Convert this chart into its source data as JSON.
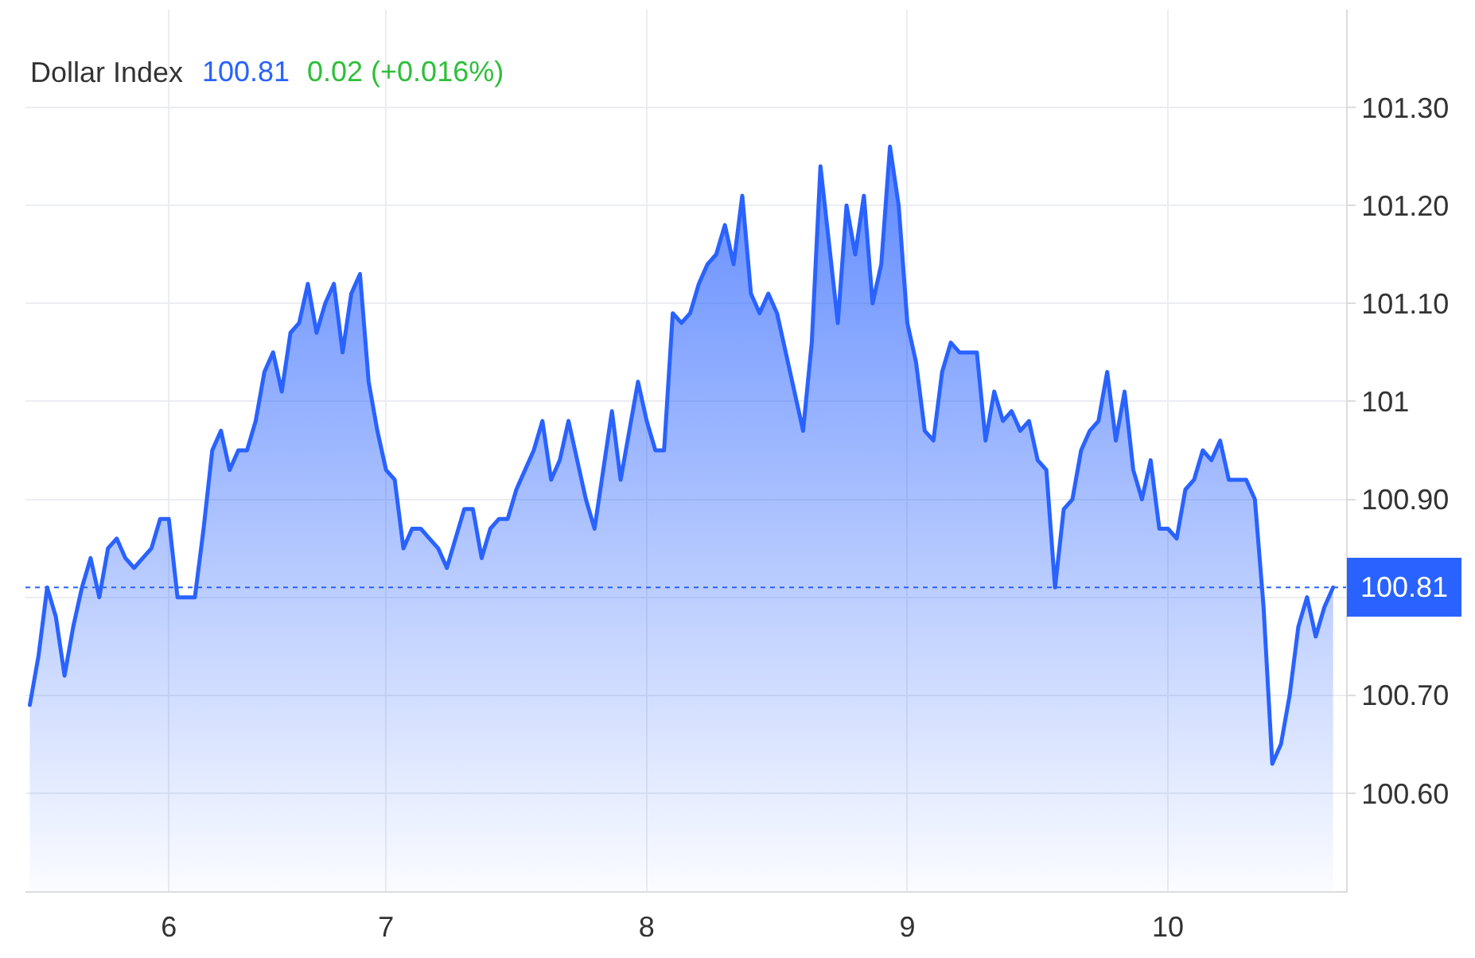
{
  "chart_data": {
    "type": "area",
    "title": "Dollar Index",
    "annotations": [
      "100.81",
      "0.02 (+0.016%)"
    ],
    "categories": [
      null,
      null,
      null,
      null,
      null,
      null,
      null,
      null,
      null,
      null,
      null,
      null,
      null,
      null,
      null,
      null,
      "6",
      null,
      null,
      null,
      null,
      null,
      null,
      null,
      null,
      null,
      null,
      null,
      null,
      null,
      null,
      null,
      null,
      null,
      null,
      null,
      null,
      null,
      null,
      null,
      null,
      "7",
      null,
      null,
      null,
      null,
      null,
      null,
      null,
      null,
      null,
      null,
      null,
      null,
      null,
      null,
      null,
      null,
      null,
      null,
      null,
      null,
      null,
      null,
      null,
      null,
      null,
      null,
      null,
      null,
      null,
      "8",
      null,
      null,
      null,
      null,
      null,
      null,
      null,
      null,
      null,
      null,
      null,
      null,
      null,
      null,
      null,
      null,
      null,
      null,
      null,
      null,
      null,
      null,
      null,
      null,
      null,
      null,
      null,
      null,
      null,
      "9",
      null,
      null,
      null,
      null,
      null,
      null,
      null,
      null,
      null,
      null,
      null,
      null,
      null,
      null,
      null,
      null,
      null,
      null,
      null,
      null,
      null,
      null,
      null,
      null,
      null,
      null,
      null,
      null,
      null,
      "10",
      null,
      null,
      null,
      null,
      null,
      null,
      null,
      null,
      null,
      null,
      null,
      null,
      null,
      null,
      null,
      null,
      null,
      null,
      null
    ],
    "color": "#2962ff",
    "values": [
      100.69,
      100.74,
      100.81,
      100.78,
      100.72,
      100.77,
      100.81,
      100.84,
      100.8,
      100.85,
      100.86,
      100.84,
      100.83,
      100.84,
      100.85,
      100.88,
      100.88,
      100.8,
      100.8,
      100.8,
      100.87,
      100.95,
      100.97,
      100.93,
      100.95,
      100.95,
      100.98,
      101.03,
      101.05,
      101.01,
      101.07,
      101.08,
      101.12,
      101.07,
      101.1,
      101.12,
      101.05,
      101.11,
      101.13,
      101.02,
      100.97,
      100.93,
      100.92,
      100.85,
      100.87,
      100.87,
      100.86,
      100.85,
      100.83,
      100.86,
      100.89,
      100.89,
      100.84,
      100.87,
      100.88,
      100.88,
      100.91,
      100.93,
      100.95,
      100.98,
      100.92,
      100.94,
      100.98,
      100.94,
      100.9,
      100.87,
      100.93,
      100.99,
      100.92,
      100.97,
      101.02,
      100.98,
      100.95,
      100.95,
      101.09,
      101.08,
      101.09,
      101.12,
      101.14,
      101.15,
      101.18,
      101.14,
      101.21,
      101.11,
      101.09,
      101.11,
      101.09,
      101.05,
      101.01,
      100.97,
      101.06,
      101.24,
      101.16,
      101.08,
      101.2,
      101.15,
      101.21,
      101.1,
      101.14,
      101.26,
      101.2,
      101.08,
      101.04,
      100.97,
      100.96,
      101.03,
      101.06,
      101.05,
      101.05,
      101.05,
      100.96,
      101.01,
      100.98,
      100.99,
      100.97,
      100.98,
      100.94,
      100.93,
      100.81,
      100.89,
      100.9,
      100.95,
      100.97,
      100.98,
      101.03,
      100.96,
      101.01,
      100.93,
      100.9,
      100.94,
      100.87,
      100.87,
      100.86,
      100.91,
      100.92,
      100.95,
      100.94,
      100.96,
      100.92,
      100.92,
      100.92,
      100.9,
      100.79,
      100.63,
      100.65,
      100.7,
      100.77,
      100.8,
      100.76,
      100.79,
      100.81
    ],
    "ylim": [
      100.5,
      101.4
    ],
    "yticks": [
      {
        "value": 100.6,
        "label": "100.60"
      },
      {
        "value": 100.7,
        "label": "100.70"
      },
      {
        "value": 100.8,
        "label": null
      },
      {
        "value": 100.9,
        "label": "100.90"
      },
      101,
      {
        "value": 101.1,
        "label": "101.10"
      },
      {
        "value": 101.2,
        "label": "101.20"
      },
      {
        "value": 101.3,
        "label": "101.30"
      }
    ],
    "ref_lines": [
      {
        "axis": "y",
        "value": 100.81,
        "label": "100.81",
        "color": "#2962ff",
        "line_style": "dotted"
      }
    ],
    "grid": true
  }
}
